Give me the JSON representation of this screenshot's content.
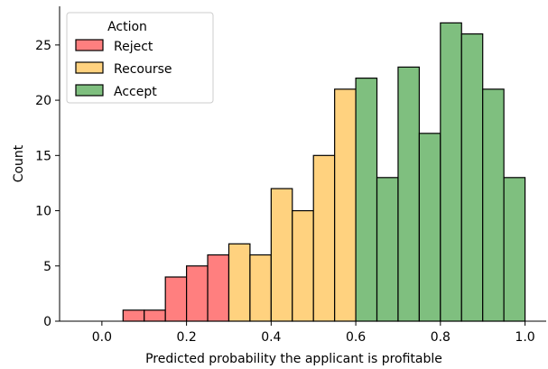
{
  "chart_data": {
    "type": "bar",
    "subtype": "stacked-histogram",
    "xlabel": "Predicted probability the applicant is profitable",
    "ylabel": "Count",
    "xlim": [
      -0.1,
      1.05
    ],
    "ylim": [
      0,
      28.5
    ],
    "xticks": [
      0.0,
      0.2,
      0.4,
      0.6,
      0.8,
      1.0
    ],
    "xtick_labels": [
      "0.0",
      "0.2",
      "0.4",
      "0.6",
      "0.8",
      "1.0"
    ],
    "yticks": [
      0,
      5,
      10,
      15,
      20,
      25
    ],
    "ytick_labels": [
      "0",
      "5",
      "10",
      "15",
      "20",
      "25"
    ],
    "grid": false,
    "legend": {
      "title": "Action",
      "position": "upper-left",
      "entries": [
        {
          "name": "Reject",
          "color": "#FF7F7F"
        },
        {
          "name": "Recourse",
          "color": "#FFD27F"
        },
        {
          "name": "Accept",
          "color": "#7FBF7F"
        }
      ]
    },
    "bin_width": 0.05,
    "series": [
      {
        "name": "Reject",
        "color": "#FF7F7F",
        "x": [
          -0.05,
          0.0,
          0.05,
          0.1,
          0.15,
          0.2,
          0.25
        ],
        "values": [
          0,
          0,
          1,
          1,
          4,
          5,
          6
        ]
      },
      {
        "name": "Recourse",
        "color": "#FFD27F",
        "x": [
          0.3,
          0.35,
          0.4,
          0.45,
          0.5,
          0.55
        ],
        "values": [
          7,
          6,
          12,
          10,
          15,
          21
        ]
      },
      {
        "name": "Accept",
        "color": "#7FBF7F",
        "x": [
          0.6,
          0.65,
          0.7,
          0.75,
          0.8,
          0.85,
          0.9,
          0.95
        ],
        "values": [
          22,
          13,
          23,
          17,
          27,
          26,
          21,
          13
        ]
      }
    ]
  }
}
